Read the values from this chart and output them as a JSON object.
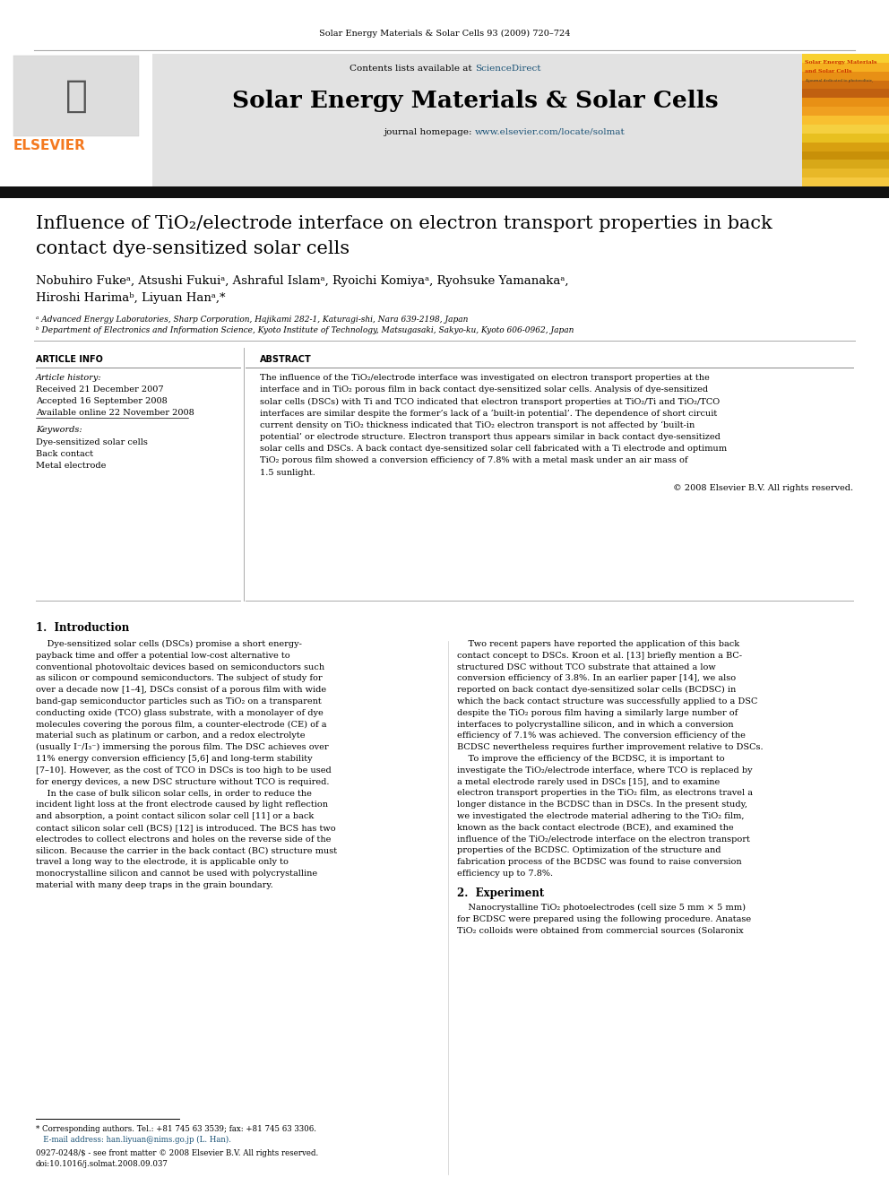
{
  "page_title": "Solar Energy Materials & Solar Cells 93 (2009) 720–724",
  "journal_name": "Solar Energy Materials & Solar Cells",
  "journal_url": "www.elsevier.com/locate/solmat",
  "contents_line": "Contents lists available at ScienceDirect",
  "article_title_line1": "Influence of TiO₂/electrode interface on electron transport properties in back",
  "article_title_line2": "contact dye-sensitized solar cells",
  "authors": "Nobuhiro Fukeᵃ, Atsushi Fukuiᵃ, Ashraful Islamᵃ, Ryoichi Komiyaᵃ, Ryohsuke Yamanakaᵃ,",
  "authors2": "Hiroshi Harimaᵇ, Liyuan Hanᵃ,*",
  "affil_a": "ᵃ Advanced Energy Laboratories, Sharp Corporation, Hajikami 282-1, Katuragi-shi, Nara 639-2198, Japan",
  "affil_b": "ᵇ Department of Electronics and Information Science, Kyoto Institute of Technology, Matsugasaki, Sakyo-ku, Kyoto 606-0962, Japan",
  "article_info_header": "ARTICLE INFO",
  "abstract_header": "ABSTRACT",
  "article_history_label": "Article history:",
  "received": "Received 21 December 2007",
  "accepted": "Accepted 16 September 2008",
  "available": "Available online 22 November 2008",
  "keywords_label": "Keywords:",
  "kw1": "Dye-sensitized solar cells",
  "kw2": "Back contact",
  "kw3": "Metal electrode",
  "copyright": "© 2008 Elsevier B.V. All rights reserved.",
  "intro_header": "1.  Introduction",
  "section2_header": "2.  Experiment",
  "footnote1": "* Corresponding authors. Tel.: +81 745 63 3539; fax: +81 745 63 3306.",
  "footnote2": "   E-mail address: han.liyuan@nims.go.jp (L. Han).",
  "footnote3": "0927-0248/$ - see front matter © 2008 Elsevier B.V. All rights reserved.",
  "footnote4": "doi:10.1016/j.solmat.2008.09.037",
  "bg_color": "#ffffff",
  "header_bg": "#e2e2e2",
  "elsevier_color": "#f47920",
  "link_color": "#1a5276",
  "black_bar_color": "#111111",
  "text_color": "#000000",
  "line_color": "#888888",
  "cover_text_color": "#cc3300"
}
